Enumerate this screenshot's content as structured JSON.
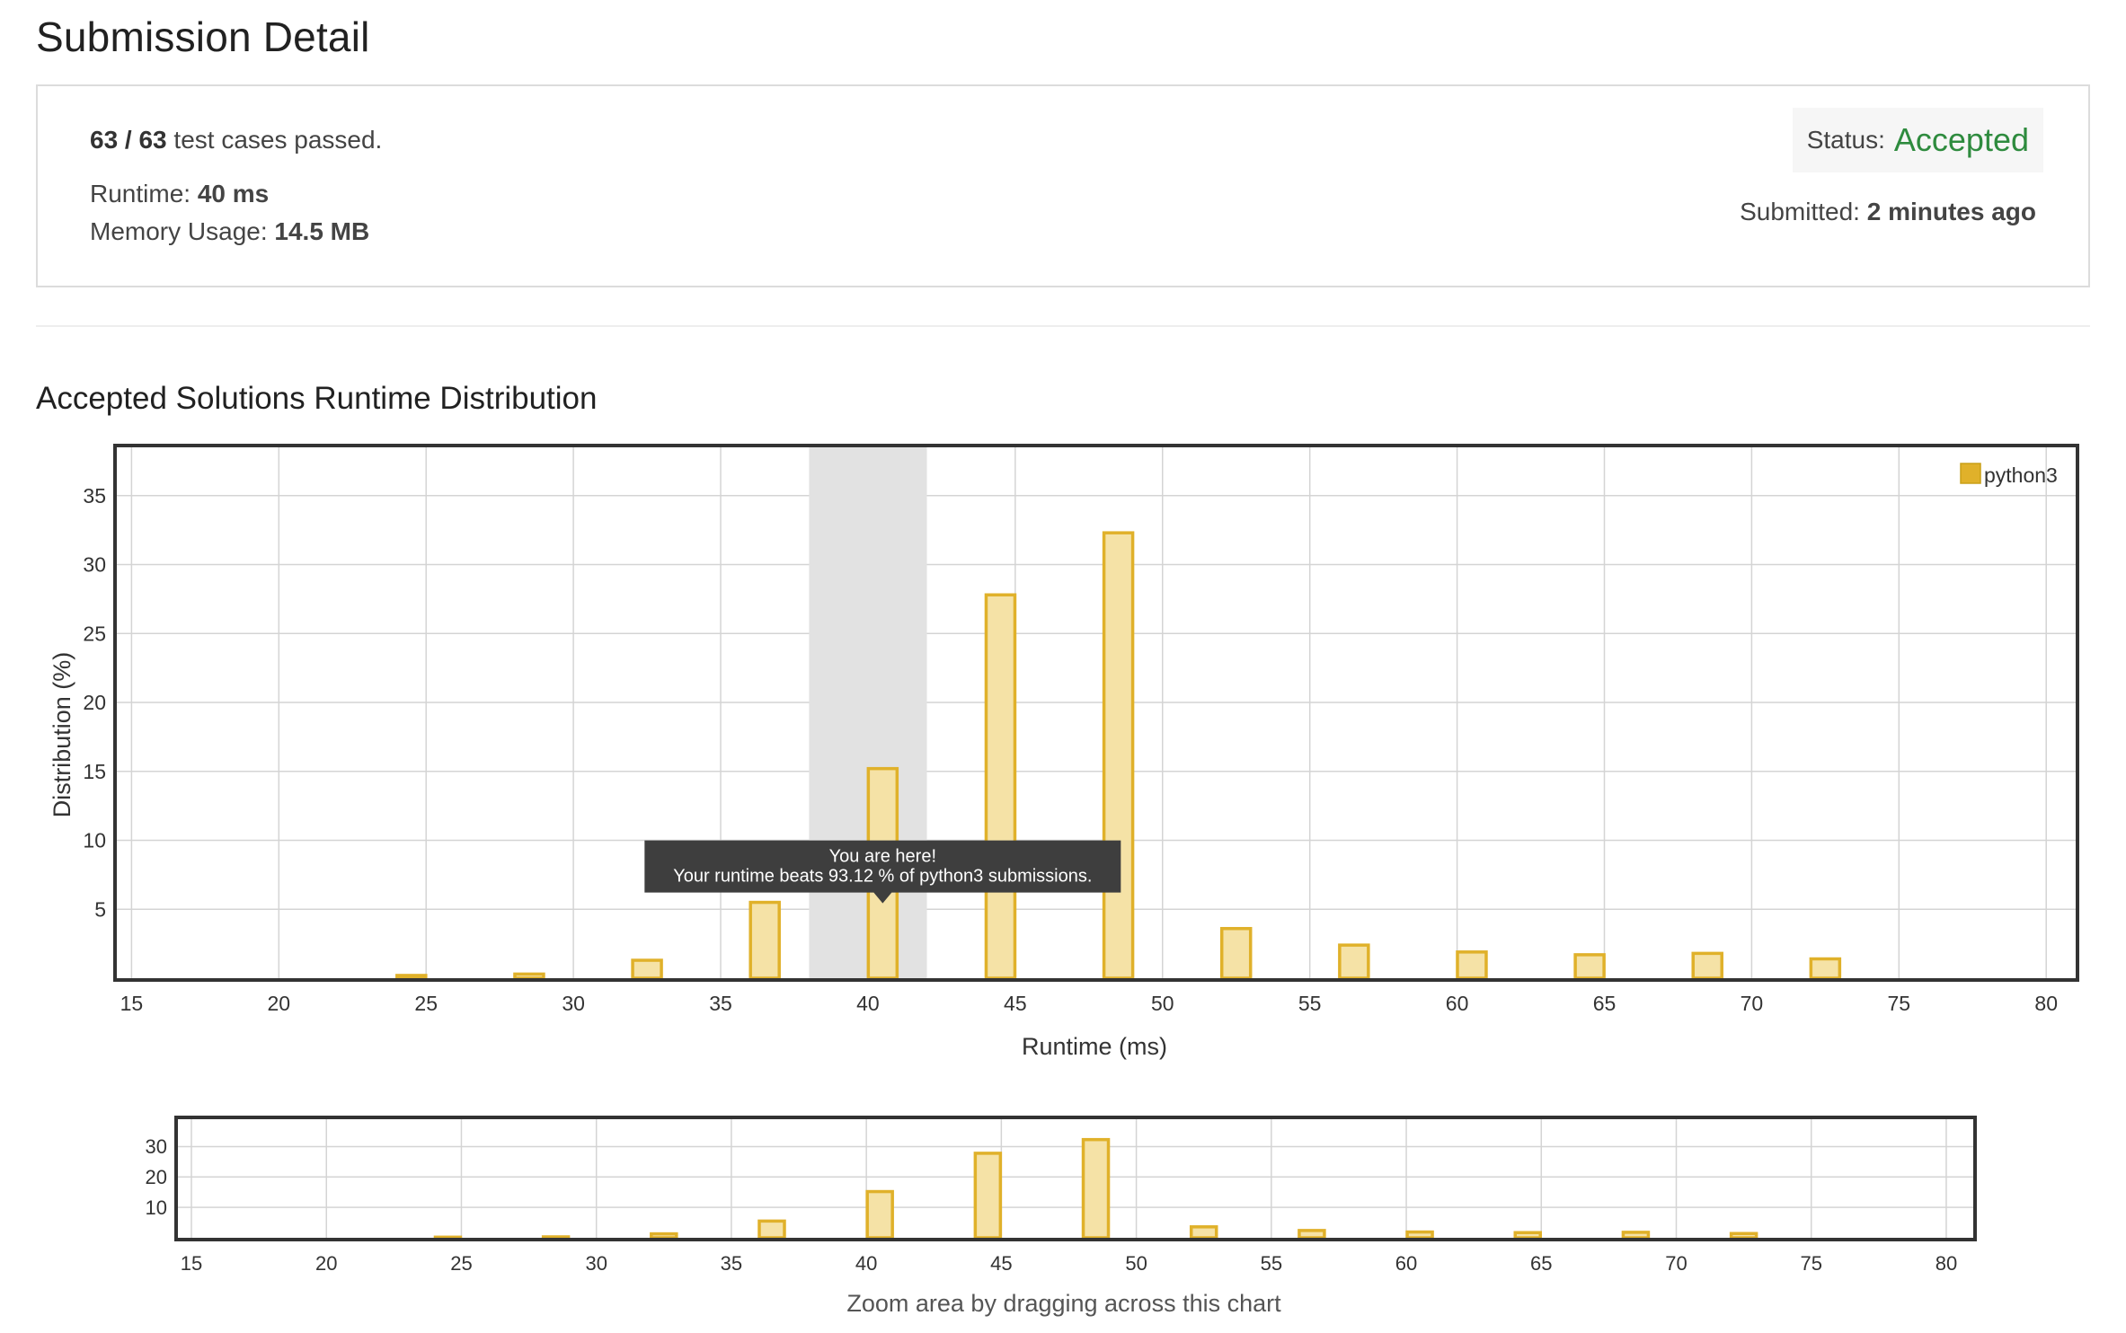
{
  "page": {
    "title": "Submission Detail"
  },
  "summary": {
    "passed": "63 / 63",
    "passed_suffix": "test cases passed.",
    "runtime_label": "Runtime:",
    "runtime_value": "40 ms",
    "memory_label": "Memory Usage:",
    "memory_value": "14.5 MB",
    "status_label": "Status:",
    "status_value": "Accepted",
    "submitted_label": "Submitted:",
    "submitted_value": "2 minutes ago"
  },
  "section": {
    "title": "Accepted Solutions Runtime Distribution"
  },
  "overview": {
    "caption": "Zoom area by dragging across this chart"
  },
  "colors": {
    "accent": "#e0b12a",
    "bar_fill": "#f5e2a6",
    "status_accepted": "#2e8b3e",
    "highlight": "#e2e2e2",
    "tooltip_bg": "#3e3e3e"
  },
  "chart_data": [
    {
      "type": "bar",
      "xlabel": "Runtime (ms)",
      "ylabel": "Distribution (%)",
      "xlim": [
        14.5,
        81
      ],
      "ylim": [
        0,
        38.5
      ],
      "xticks": [
        15,
        20,
        25,
        30,
        35,
        40,
        45,
        50,
        55,
        60,
        65,
        70,
        75,
        80
      ],
      "yticks": [
        5,
        10,
        15,
        20,
        25,
        30,
        35
      ],
      "grid": true,
      "legend_position": "top-right",
      "highlight_range": [
        38,
        42
      ],
      "series": [
        {
          "name": "python3",
          "x": [
            24.5,
            28.5,
            32.5,
            36.5,
            40.5,
            44.5,
            48.5,
            52.5,
            56.5,
            60.5,
            64.5,
            68.5,
            72.5
          ],
          "values": [
            0.2,
            0.3,
            1.3,
            5.5,
            15.2,
            27.8,
            32.3,
            3.6,
            2.4,
            1.9,
            1.7,
            1.8,
            1.4
          ]
        }
      ],
      "tooltip": {
        "line1": "You are here!",
        "line2": "Your runtime beats 93.12 % of python3 submissions."
      }
    },
    {
      "type": "bar",
      "xlim": [
        14.5,
        81
      ],
      "ylim": [
        0,
        39
      ],
      "xticks": [
        15,
        20,
        25,
        30,
        35,
        40,
        45,
        50,
        55,
        60,
        65,
        70,
        75,
        80
      ],
      "yticks": [
        10,
        20,
        30
      ],
      "grid": true,
      "series": [
        {
          "name": "python3",
          "x": [
            24.5,
            28.5,
            32.5,
            36.5,
            40.5,
            44.5,
            48.5,
            52.5,
            56.5,
            60.5,
            64.5,
            68.5,
            72.5
          ],
          "values": [
            0.2,
            0.3,
            1.3,
            5.5,
            15.2,
            27.8,
            32.3,
            3.6,
            2.4,
            1.9,
            1.7,
            1.8,
            1.4
          ]
        }
      ]
    }
  ]
}
